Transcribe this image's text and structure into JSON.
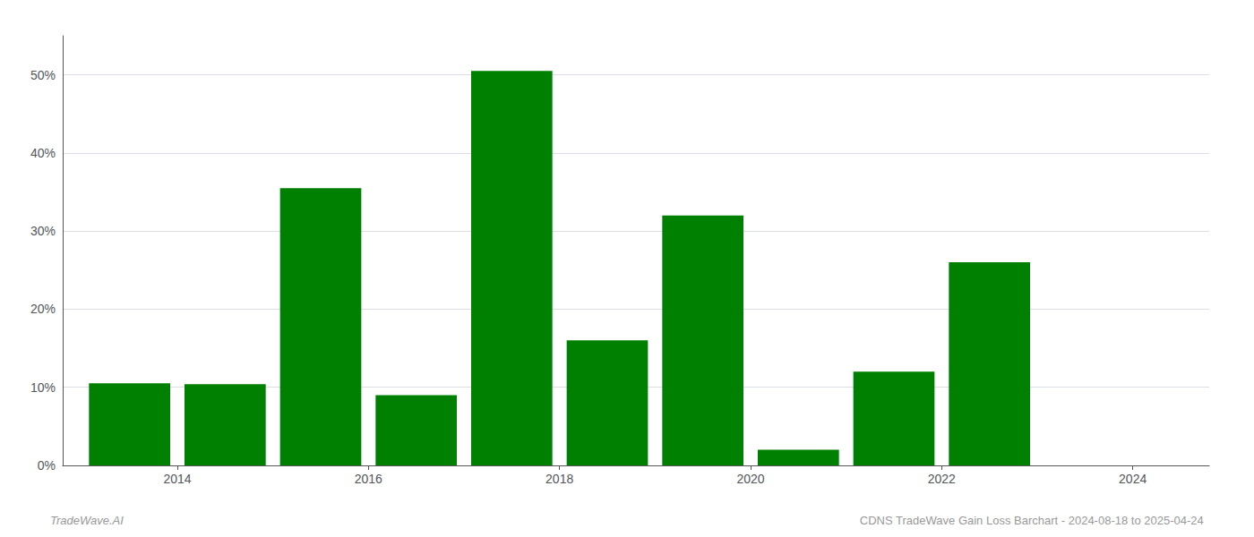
{
  "chart_data": {
    "type": "bar",
    "x": [
      2013.5,
      2014.5,
      2015.5,
      2016.5,
      2017.5,
      2018.5,
      2019.5,
      2020.5,
      2021.5,
      2022.5,
      2023.5
    ],
    "values": [
      10.5,
      10.4,
      35.5,
      9.0,
      50.5,
      16.0,
      32.0,
      2.0,
      12.0,
      26.0,
      0.0
    ],
    "color": "#008000",
    "xlim": [
      2012.8,
      2024.8
    ],
    "xticks": [
      2014,
      2016,
      2018,
      2020,
      2022,
      2024
    ],
    "ylim": [
      0,
      55
    ],
    "yticks": [
      {
        "value": 0,
        "label": "0%"
      },
      {
        "value": 10,
        "label": "10%"
      },
      {
        "value": 20,
        "label": "20%"
      },
      {
        "value": 30,
        "label": "30%"
      },
      {
        "value": 40,
        "label": "40%"
      },
      {
        "value": 50,
        "label": "50%"
      }
    ],
    "grid": true,
    "annotations": [
      "TradeWave.AI",
      "CDNS TradeWave Gain Loss Barchart - 2024-08-18 to 2025-04-24"
    ]
  }
}
